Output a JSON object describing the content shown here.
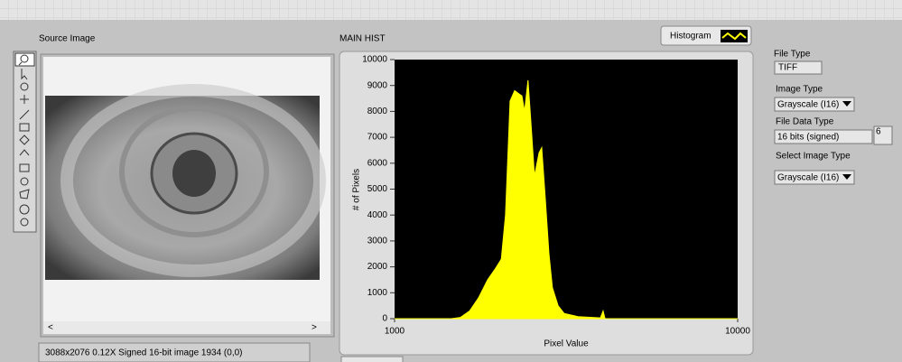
{
  "labels": {
    "source_image": "Source Image",
    "main_hist": "MAIN HIST",
    "histogram_button": "Histogram",
    "file_type": "File Type",
    "file_type_value": "TIFF",
    "image_type": "Image Type",
    "image_type_value": "Grayscale (I16)",
    "file_data_type": "File Data Type",
    "file_data_type_value": "16 bits (signed)",
    "file_data_type_number": "6",
    "select_image_type": "Select Image Type",
    "select_image_type_value": "Grayscale (I16)",
    "status": "3088x2076 0.12X Signed 16-bit image 1934     (0,0)"
  },
  "chart_data": {
    "type": "area",
    "x_label": "Pixel Value",
    "y_label": "# of Pixels",
    "color": "#ffff00",
    "x": [
      1000,
      2490,
      2730,
      2970,
      3200,
      3440,
      3630,
      3800,
      3910,
      4030,
      4150,
      4240,
      4340,
      4410,
      4500,
      4580,
      4670,
      4790,
      4860,
      4960,
      5050,
      5140,
      5290,
      5450,
      5810,
      6400,
      6470,
      6520,
      10000
    ],
    "values": [
      0,
      0,
      50,
      300,
      800,
      1500,
      1900,
      2300,
      4000,
      8400,
      8800,
      8700,
      8600,
      8000,
      9200,
      7500,
      5500,
      6400,
      6600,
      4500,
      2500,
      1200,
      500,
      200,
      80,
      30,
      300,
      0,
      0
    ],
    "xlim": [
      1000,
      10000
    ],
    "ylim": [
      0,
      10000
    ],
    "xticks": [
      1000,
      10000
    ],
    "yticks": [
      0,
      1000,
      2000,
      3000,
      4000,
      5000,
      6000,
      7000,
      8000,
      9000,
      10000
    ]
  }
}
